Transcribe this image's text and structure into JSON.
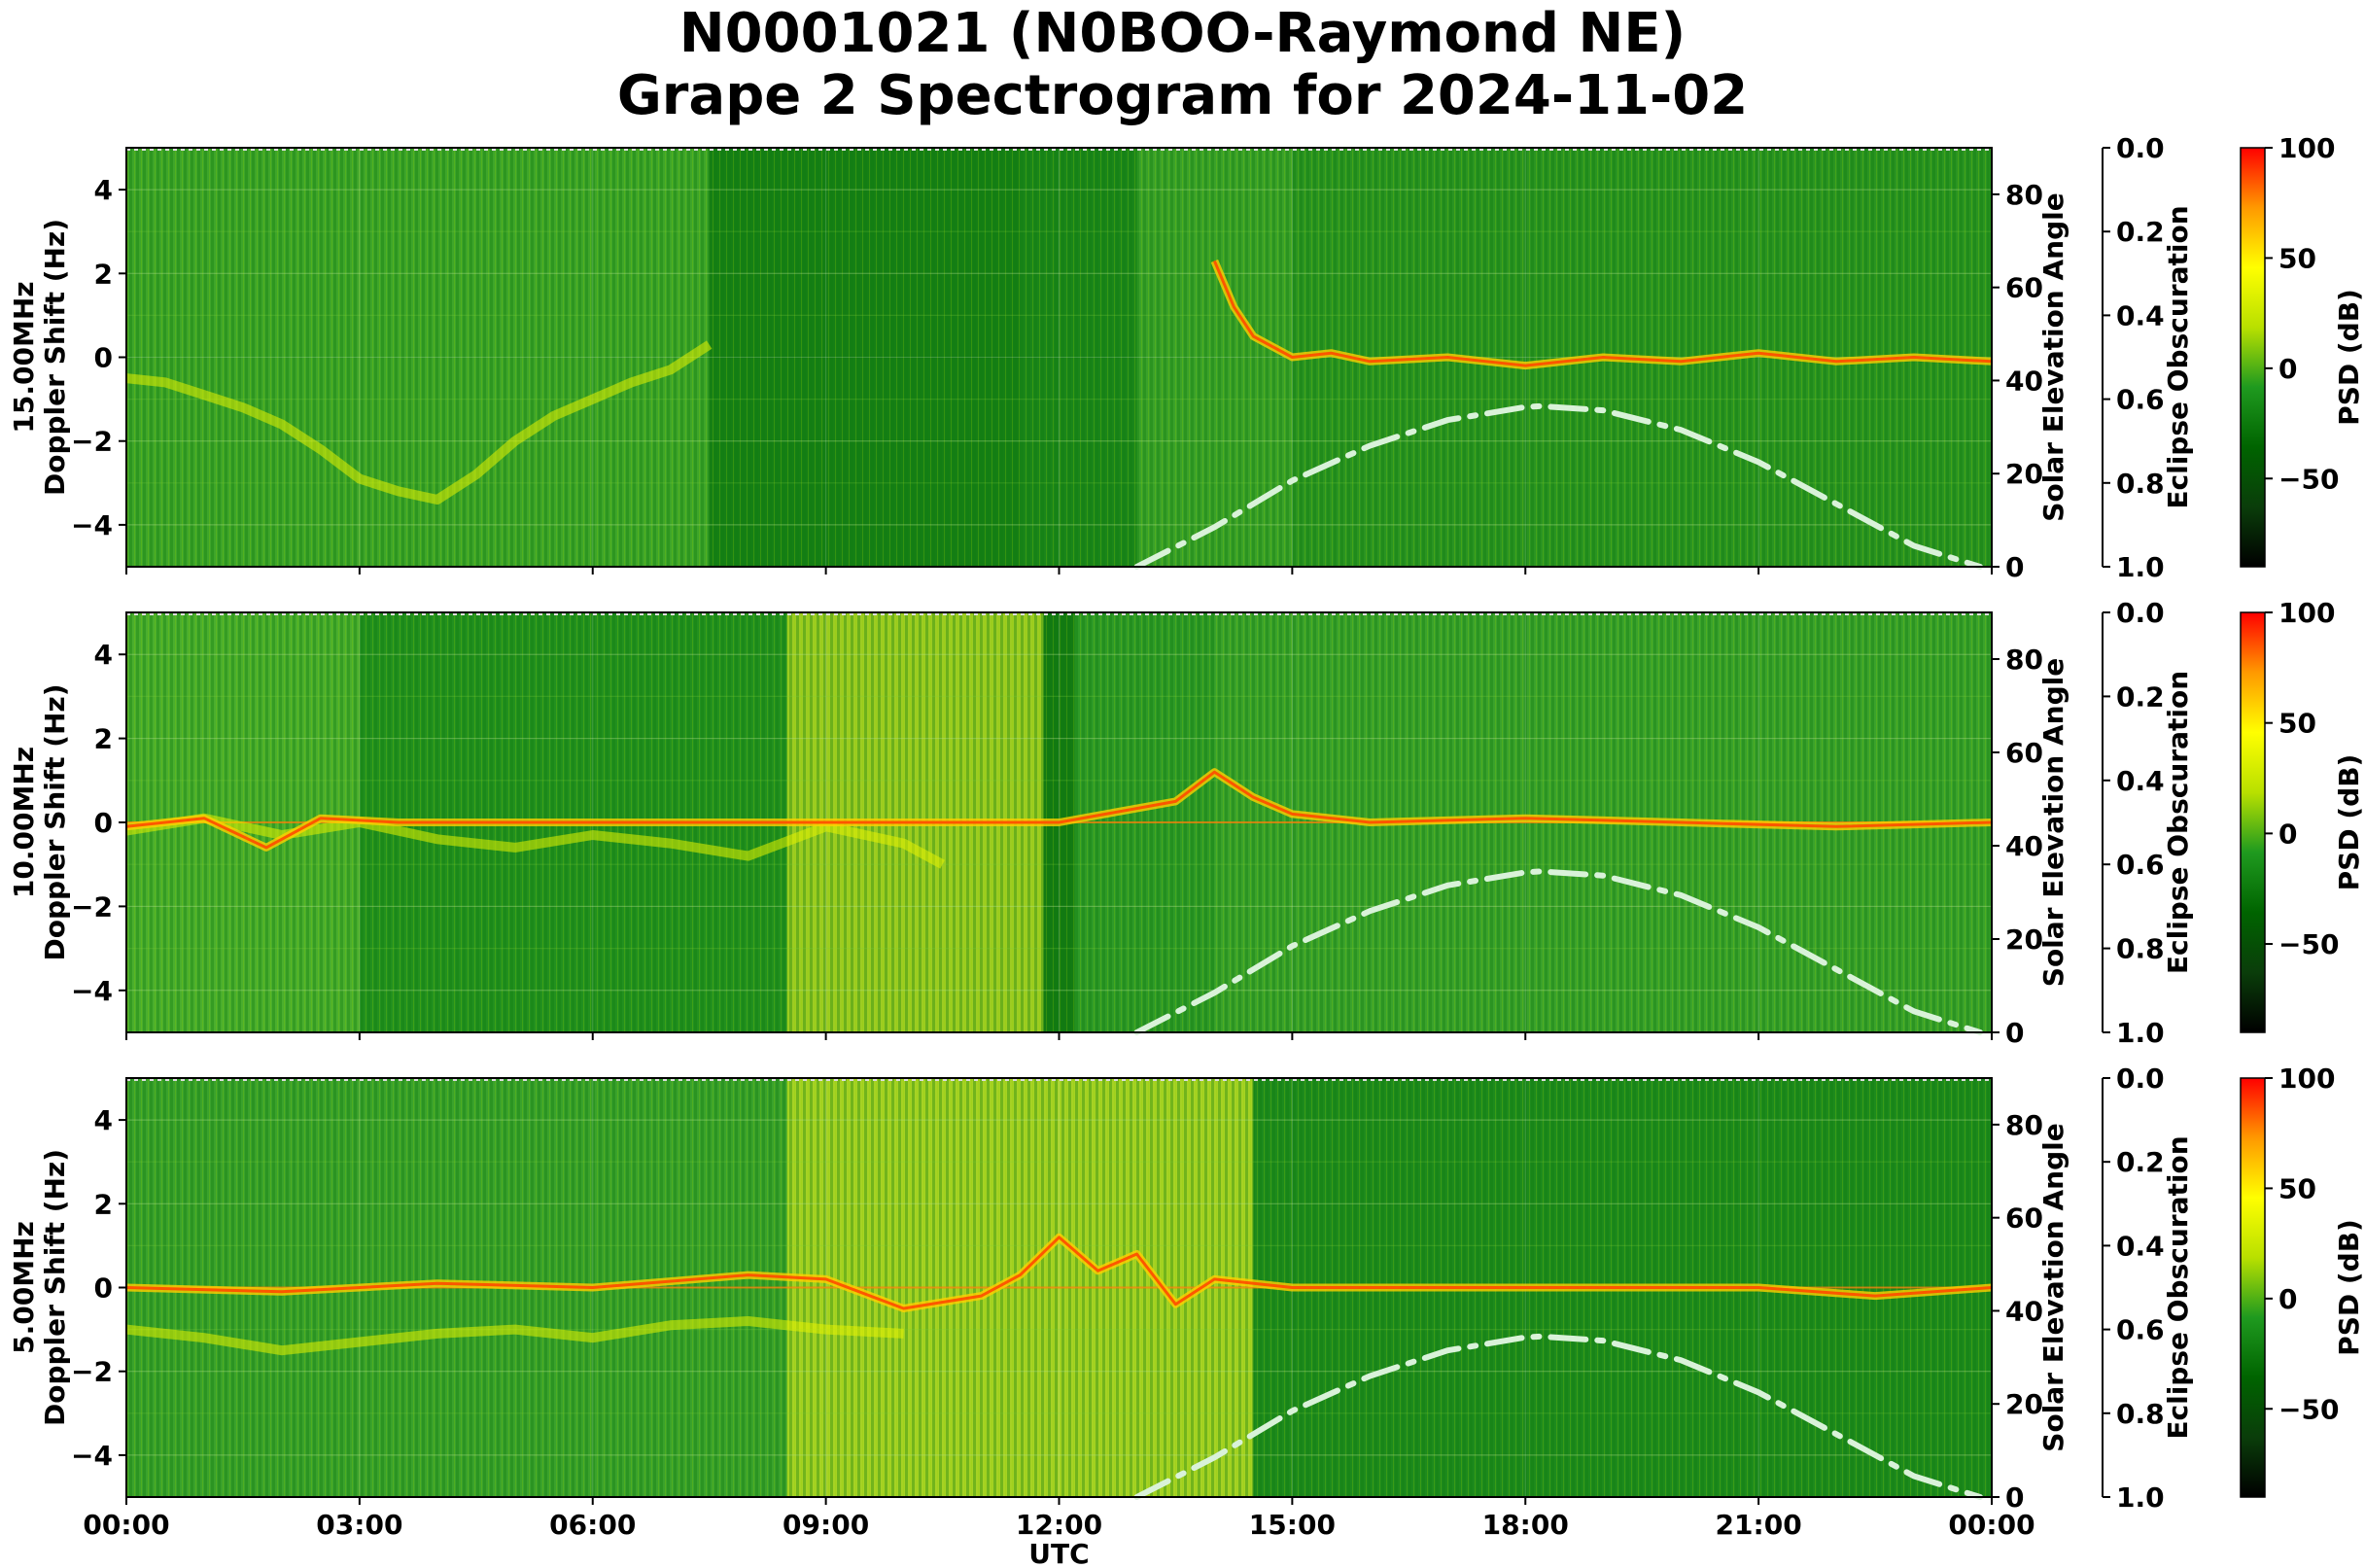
{
  "figure": {
    "title_line1": "N0001021 (N0BOO-Raymond NE)",
    "title_line2": "Grape 2 Spectrogram for 2024-11-02"
  },
  "colors": {
    "colormap": [
      "#000000",
      "#0a3d0a",
      "#006400",
      "#1f9a1f",
      "#b8e000",
      "#ffff00",
      "#ff9900",
      "#ff0000"
    ],
    "solar_curve": "#d9f2d9",
    "frame": "#000000"
  },
  "x_axis": {
    "label": "UTC",
    "ticks": [
      "00:00",
      "03:00",
      "06:00",
      "09:00",
      "12:00",
      "15:00",
      "18:00",
      "21:00",
      "00:00"
    ]
  },
  "chart_data": [
    {
      "type": "heatmap",
      "frequency_label": "15.00MHz",
      "ylabel": "Doppler Shift (Hz)",
      "ylim": [
        -5,
        5
      ],
      "yticks": [
        "4",
        "2",
        "0",
        "−2",
        "−4"
      ],
      "right_ylabel": "Solar Elevation Angle",
      "right_ylim": [
        0,
        90
      ],
      "right_yticks": [
        "80",
        "60",
        "40",
        "20",
        "0"
      ],
      "eclipse_label": "Eclipse Obscuration",
      "eclipse_ticks": [
        "0.0",
        "0.2",
        "0.4",
        "0.6",
        "0.8",
        "1.0"
      ],
      "colorbar_label": "PSD (dB)",
      "colorbar_range": [
        -90,
        100
      ],
      "colorbar_ticks": [
        "100",
        "50",
        "0",
        "−50"
      ],
      "grid": true,
      "solar_elevation": {
        "x_hours": [
          13.0,
          14.0,
          15.0,
          16.0,
          17.0,
          18.0,
          18.2,
          19.0,
          20.0,
          21.0,
          22.0,
          23.0,
          23.85
        ],
        "y_deg": [
          0,
          8.5,
          18.5,
          26,
          31.5,
          34.3,
          34.5,
          33.6,
          29.4,
          22.5,
          13.5,
          4.5,
          0
        ]
      },
      "carrier_trace": {
        "x_hours": [
          0.0,
          0.5,
          1.0,
          1.5,
          2.0,
          2.5,
          3.0,
          3.5,
          4.0,
          4.5,
          5.0,
          5.5,
          6.0,
          6.5,
          7.0,
          7.5
        ],
        "y_hz": [
          -0.5,
          -0.6,
          -0.9,
          -1.2,
          -1.6,
          -2.2,
          -2.9,
          -3.2,
          -3.4,
          -2.8,
          -2.0,
          -1.4,
          -1.0,
          -0.6,
          -0.3,
          0.3
        ]
      },
      "signal_trace": {
        "x_hours": [
          14.0,
          14.25,
          14.5,
          15.0,
          15.5,
          16.0,
          17.0,
          18.0,
          19.0,
          20.0,
          21.0,
          22.0,
          23.0,
          24.0
        ],
        "y_hz": [
          2.3,
          1.2,
          0.5,
          0.0,
          0.1,
          -0.1,
          0.0,
          -0.2,
          0.0,
          -0.1,
          0.1,
          -0.1,
          0.0,
          -0.1
        ]
      }
    },
    {
      "type": "heatmap",
      "frequency_label": "10.00MHz",
      "ylabel": "Doppler Shift (Hz)",
      "ylim": [
        -5,
        5
      ],
      "yticks": [
        "4",
        "2",
        "0",
        "−2",
        "−4"
      ],
      "right_ylabel": "Solar Elevation Angle",
      "right_ylim": [
        0,
        90
      ],
      "right_yticks": [
        "80",
        "60",
        "40",
        "20",
        "0"
      ],
      "eclipse_label": "Eclipse Obscuration",
      "eclipse_ticks": [
        "0.0",
        "0.2",
        "0.4",
        "0.6",
        "0.8",
        "1.0"
      ],
      "colorbar_label": "PSD (dB)",
      "colorbar_range": [
        -90,
        100
      ],
      "colorbar_ticks": [
        "100",
        "50",
        "0",
        "−50"
      ],
      "grid": true,
      "solar_elevation": {
        "x_hours": [
          13.0,
          14.0,
          15.0,
          16.0,
          17.0,
          18.0,
          18.2,
          19.0,
          20.0,
          21.0,
          22.0,
          23.0,
          23.85
        ],
        "y_deg": [
          0,
          8.5,
          18.5,
          26,
          31.5,
          34.3,
          34.5,
          33.6,
          29.4,
          22.5,
          13.5,
          4.5,
          0
        ]
      },
      "carrier_trace": {
        "x_hours": [
          0.0,
          1.0,
          2.0,
          3.0,
          4.0,
          5.0,
          6.0,
          7.0,
          8.0,
          9.0,
          10.0,
          10.5
        ],
        "y_hz": [
          -0.2,
          0.1,
          -0.3,
          0.0,
          -0.4,
          -0.6,
          -0.3,
          -0.5,
          -0.8,
          -0.1,
          -0.5,
          -1.0
        ]
      },
      "signal_trace": {
        "x_hours": [
          0.0,
          1.0,
          1.8,
          2.5,
          3.5,
          7.0,
          12.0,
          13.5,
          14.0,
          14.5,
          15.0,
          16.0,
          18.0,
          20.0,
          22.0,
          24.0
        ],
        "y_hz": [
          -0.1,
          0.1,
          -0.6,
          0.1,
          0.0,
          0.0,
          0.0,
          0.5,
          1.2,
          0.6,
          0.2,
          0.0,
          0.1,
          0.0,
          -0.1,
          0.0
        ]
      }
    },
    {
      "type": "heatmap",
      "frequency_label": "5.00MHz",
      "ylabel": "Doppler Shift (Hz)",
      "ylim": [
        -5,
        5
      ],
      "yticks": [
        "4",
        "2",
        "0",
        "−2",
        "−4"
      ],
      "right_ylabel": "Solar Elevation Angle",
      "right_ylim": [
        0,
        90
      ],
      "right_yticks": [
        "80",
        "60",
        "40",
        "20",
        "0"
      ],
      "eclipse_label": "Eclipse Obscuration",
      "eclipse_ticks": [
        "0.0",
        "0.2",
        "0.4",
        "0.6",
        "0.8",
        "1.0"
      ],
      "colorbar_label": "PSD (dB)",
      "colorbar_range": [
        -90,
        100
      ],
      "colorbar_ticks": [
        "100",
        "50",
        "0",
        "−50"
      ],
      "grid": true,
      "solar_elevation": {
        "x_hours": [
          13.0,
          14.0,
          15.0,
          16.0,
          17.0,
          18.0,
          18.2,
          19.0,
          20.0,
          21.0,
          22.0,
          23.0,
          23.85
        ],
        "y_deg": [
          0,
          8.5,
          18.5,
          26,
          31.5,
          34.3,
          34.5,
          33.6,
          29.4,
          22.5,
          13.5,
          4.5,
          0
        ]
      },
      "carrier_trace": {
        "x_hours": [
          0.0,
          1.0,
          2.0,
          3.0,
          4.0,
          5.0,
          6.0,
          7.0,
          8.0,
          9.0,
          10.0
        ],
        "y_hz": [
          -1.0,
          -1.2,
          -1.5,
          -1.3,
          -1.1,
          -1.0,
          -1.2,
          -0.9,
          -0.8,
          -1.0,
          -1.1
        ]
      },
      "signal_trace": {
        "x_hours": [
          0.0,
          2.0,
          4.0,
          6.0,
          8.0,
          9.0,
          10.0,
          11.0,
          11.5,
          12.0,
          12.5,
          13.0,
          13.5,
          14.0,
          15.0,
          18.0,
          21.0,
          22.5,
          24.0
        ],
        "y_hz": [
          0.0,
          -0.1,
          0.1,
          0.0,
          0.3,
          0.2,
          -0.5,
          -0.2,
          0.3,
          1.2,
          0.4,
          0.8,
          -0.4,
          0.2,
          0.0,
          0.0,
          0.0,
          -0.2,
          0.0
        ]
      }
    }
  ]
}
